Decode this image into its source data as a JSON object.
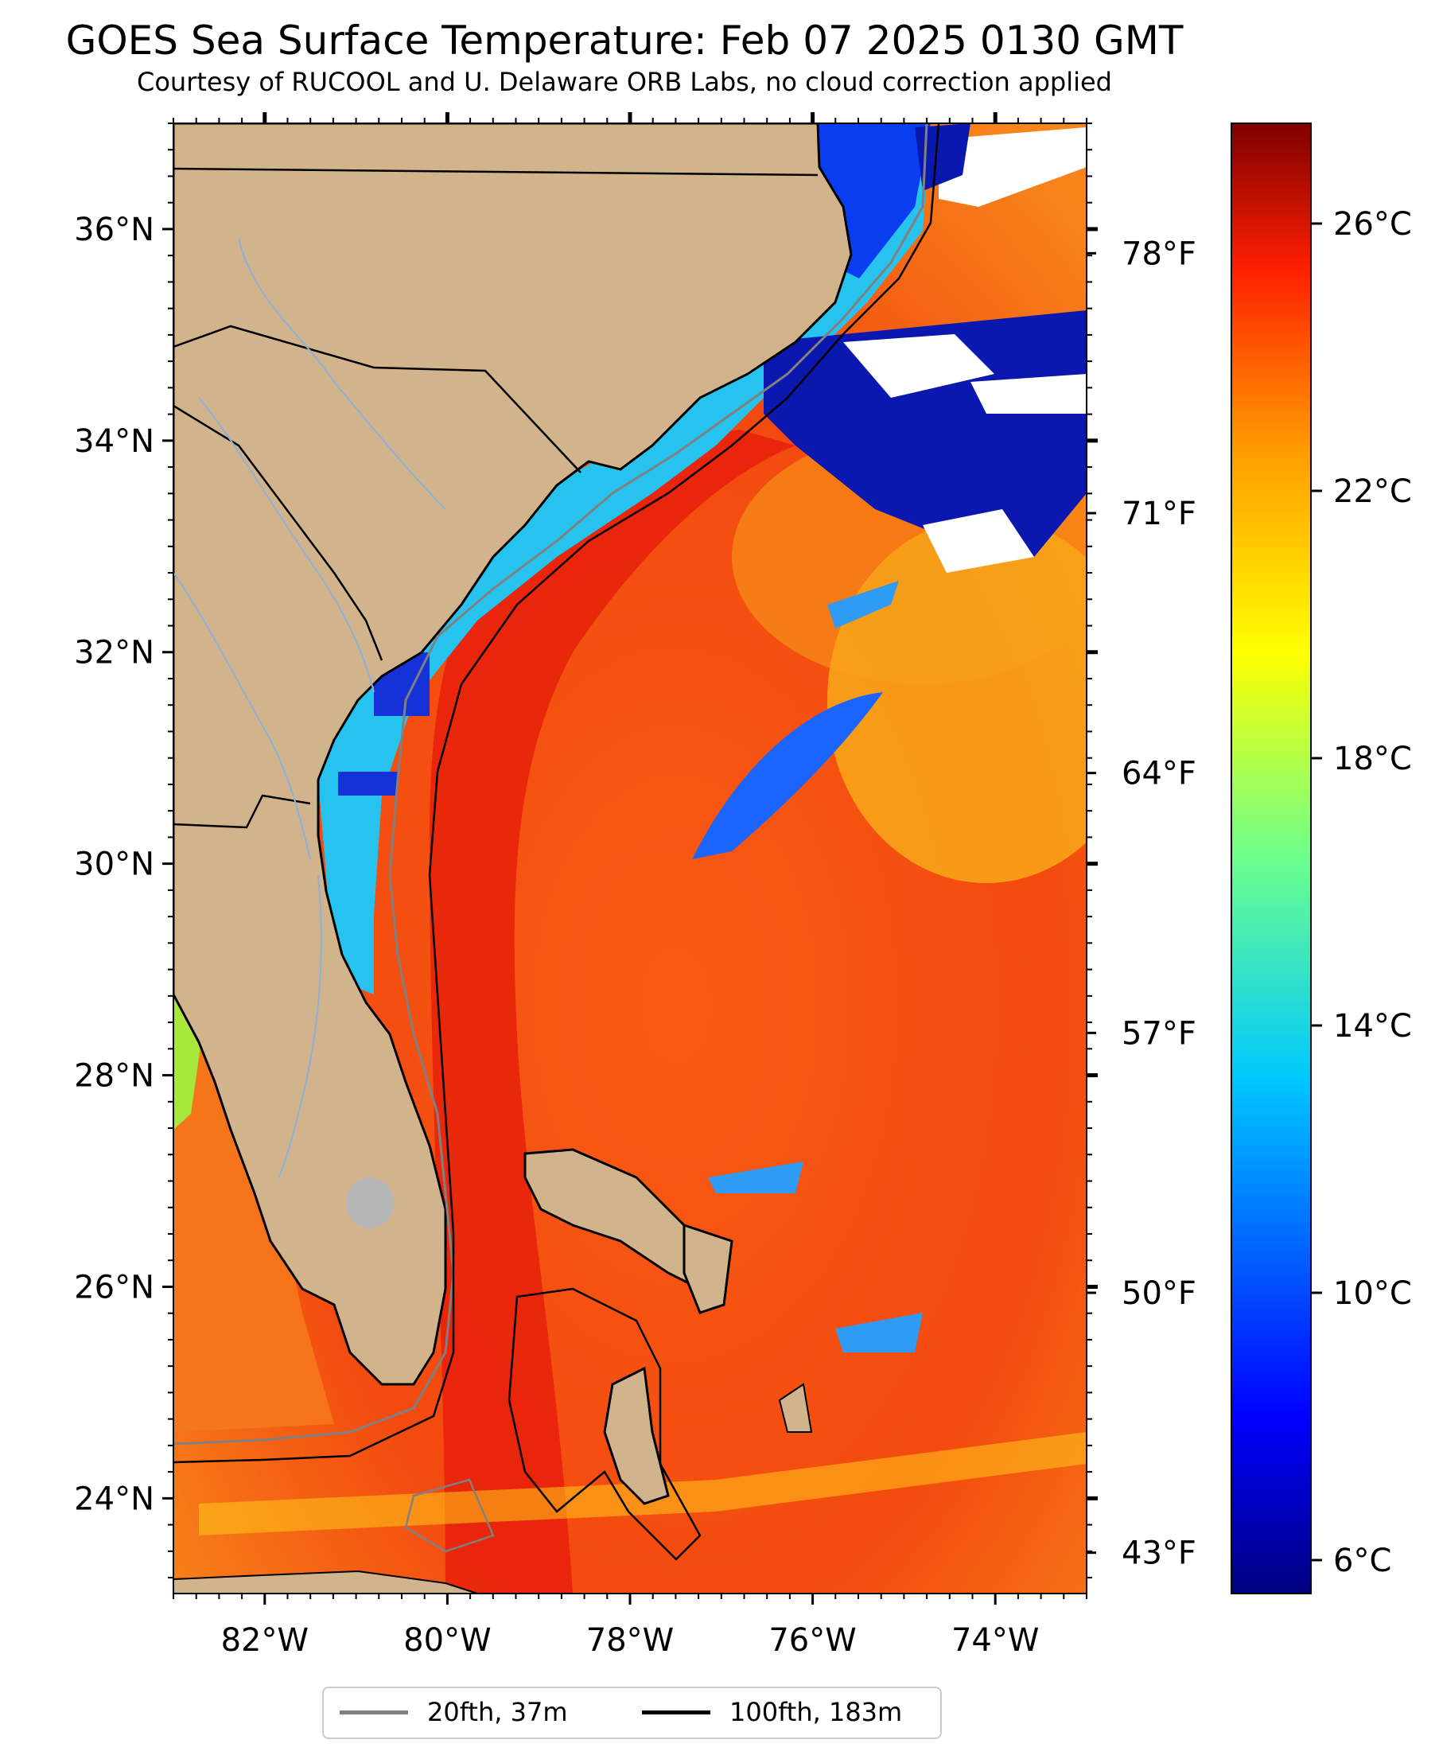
{
  "title": "GOES Sea Surface Temperature: Feb 07 2025 0130 GMT",
  "subtitle": "Courtesy of RUCOOL and U. Delaware ORB Labs, no cloud correction applied",
  "map": {
    "lon_range": [
      -83,
      -73
    ],
    "lat_range": [
      23.1,
      37.0
    ],
    "lon_ticks": [
      {
        "value": -82,
        "label": "82°W"
      },
      {
        "value": -80,
        "label": "80°W"
      },
      {
        "value": -78,
        "label": "78°W"
      },
      {
        "value": -76,
        "label": "76°W"
      },
      {
        "value": -74,
        "label": "74°W"
      }
    ],
    "lat_ticks": [
      {
        "value": 36,
        "label": "36°N"
      },
      {
        "value": 34,
        "label": "34°N"
      },
      {
        "value": 32,
        "label": "32°N"
      },
      {
        "value": 30,
        "label": "30°N"
      },
      {
        "value": 28,
        "label": "28°N"
      },
      {
        "value": 26,
        "label": "26°N"
      },
      {
        "value": 24,
        "label": "24°N"
      }
    ],
    "fahrenheit_ticks": [
      {
        "value": 78,
        "label": "78°F"
      },
      {
        "value": 71,
        "label": "71°F"
      },
      {
        "value": 64,
        "label": "64°F"
      },
      {
        "value": 57,
        "label": "57°F"
      },
      {
        "value": 50,
        "label": "50°F"
      },
      {
        "value": 43,
        "label": "43°F"
      }
    ],
    "colors": {
      "land": "#d2b48c",
      "ocean_warm": "#f03a0a",
      "gulf_stream": "#e8220a",
      "offshore_orange": "#f77a10",
      "shelf_cold": "#2bc8f0",
      "cloud": "#ffffff"
    }
  },
  "colorbar": {
    "range_c": [
      5.5,
      27.5
    ],
    "ticks": [
      {
        "value": 26,
        "label": "26°C"
      },
      {
        "value": 22,
        "label": "22°C"
      },
      {
        "value": 18,
        "label": "18°C"
      },
      {
        "value": 14,
        "label": "14°C"
      },
      {
        "value": 10,
        "label": "10°C"
      },
      {
        "value": 6,
        "label": "6°C"
      }
    ]
  },
  "legend": {
    "items": [
      {
        "label": "20fth, 37m",
        "color": "#808080"
      },
      {
        "label": "100fth, 183m",
        "color": "#000000"
      }
    ]
  }
}
